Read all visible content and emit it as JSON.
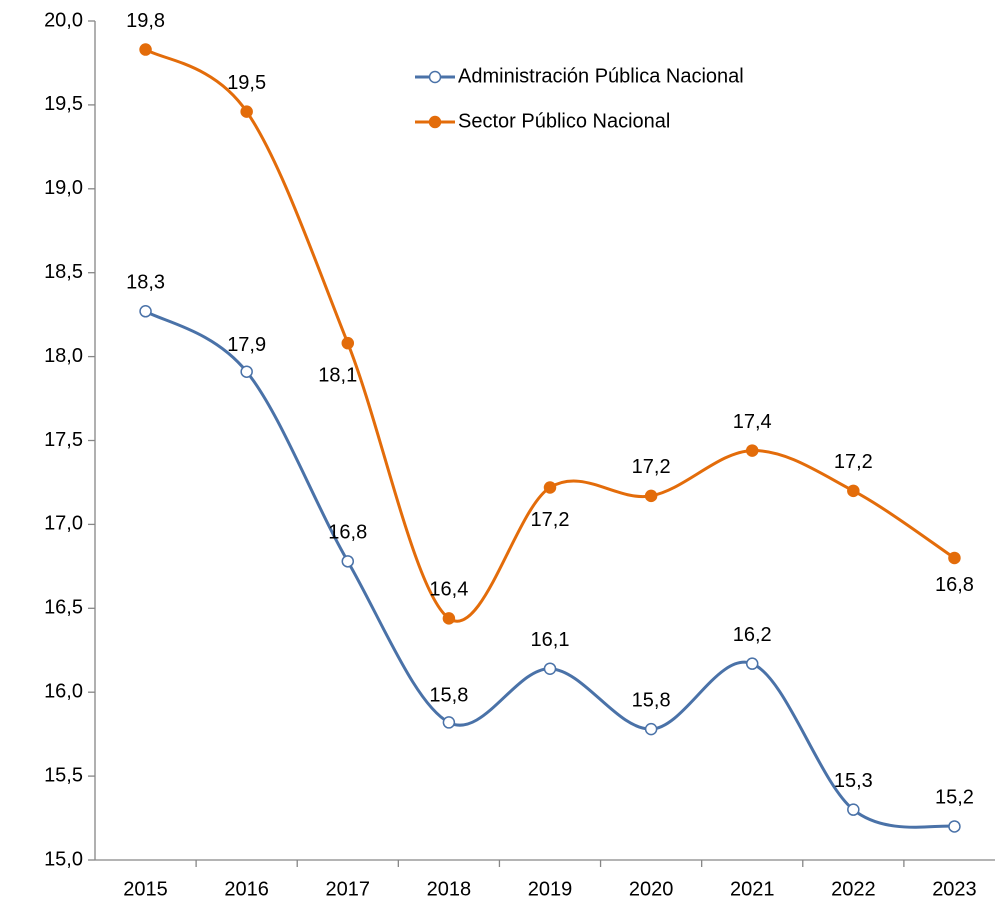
{
  "chart_data": {
    "type": "line",
    "categories": [
      "2015",
      "2016",
      "2017",
      "2018",
      "2019",
      "2020",
      "2021",
      "2022",
      "2023"
    ],
    "series": [
      {
        "name": "Administración Pública Nacional",
        "color": "#4a72a8",
        "marker": "hollow",
        "values": [
          18.27,
          17.91,
          16.78,
          15.82,
          16.14,
          15.78,
          16.17,
          15.3,
          15.2
        ],
        "value_labels": [
          "18,3",
          "17,9",
          "16,8",
          "15,8",
          "16,1",
          "15,8",
          "16,2",
          "15,3",
          "15,2"
        ]
      },
      {
        "name": "Sector Público Nacional",
        "color": "#e36c0a",
        "marker": "filled",
        "values": [
          19.83,
          19.46,
          18.08,
          16.44,
          17.22,
          17.17,
          17.44,
          17.2,
          16.8
        ],
        "value_labels": [
          "19,8",
          "19,5",
          "18,1",
          "16,4",
          "17,2",
          "17,2",
          "17,4",
          "17,2",
          "16,8"
        ]
      }
    ],
    "ylim": [
      15.0,
      20.0
    ],
    "yticks": [
      {
        "value": 15.0,
        "label": "15,0"
      },
      {
        "value": 15.5,
        "label": "15,5"
      },
      {
        "value": 16.0,
        "label": "16,0"
      },
      {
        "value": 16.5,
        "label": "16,5"
      },
      {
        "value": 17.0,
        "label": "17,0"
      },
      {
        "value": 17.5,
        "label": "17,5"
      },
      {
        "value": 18.0,
        "label": "18,0"
      },
      {
        "value": 18.5,
        "label": "18,5"
      },
      {
        "value": 19.0,
        "label": "19,0"
      },
      {
        "value": 19.5,
        "label": "19,5"
      },
      {
        "value": 20.0,
        "label": "20,0"
      }
    ],
    "grid": false
  }
}
